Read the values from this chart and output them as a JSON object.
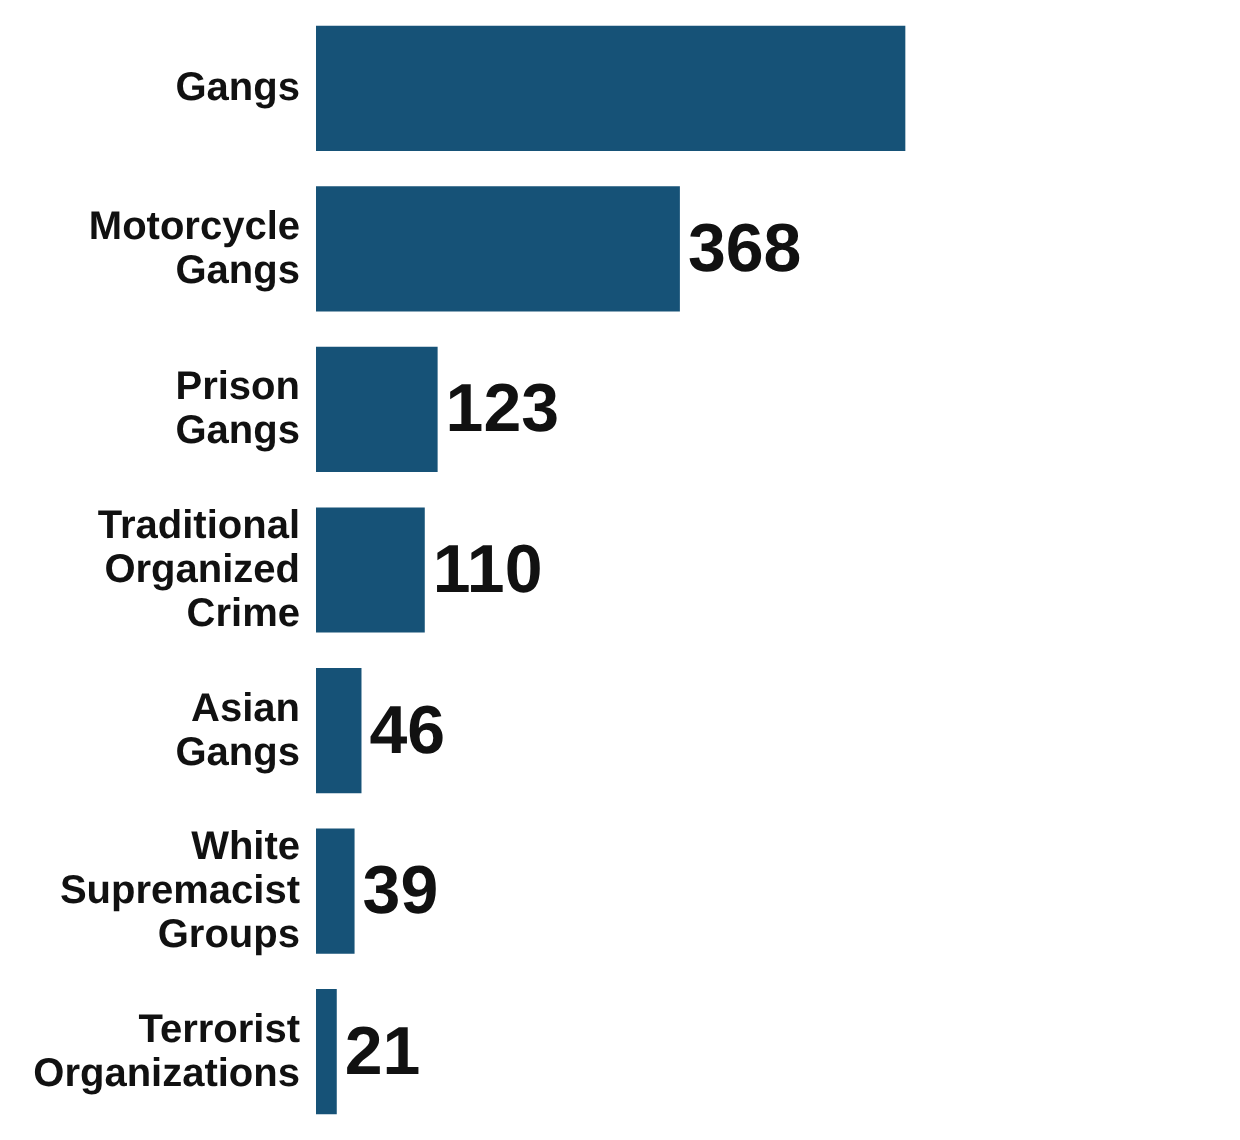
{
  "chart_data": {
    "type": "bar",
    "orientation": "horizontal",
    "tick_labels": "y",
    "categories": [
      "Gangs",
      "Motorcycle\nGangs",
      "Prison\nGangs",
      "Traditional\nOrganized\nCrime",
      "Asian\nGangs",
      "White\nSupremacist\nGroups",
      "Terrorist\nOrganizations"
    ],
    "values": [
      596,
      368,
      123,
      110,
      46,
      39,
      21
    ],
    "value_labels": [
      null,
      "368",
      "123",
      "110",
      "46",
      "39",
      "21"
    ],
    "color": "#165277"
  }
}
